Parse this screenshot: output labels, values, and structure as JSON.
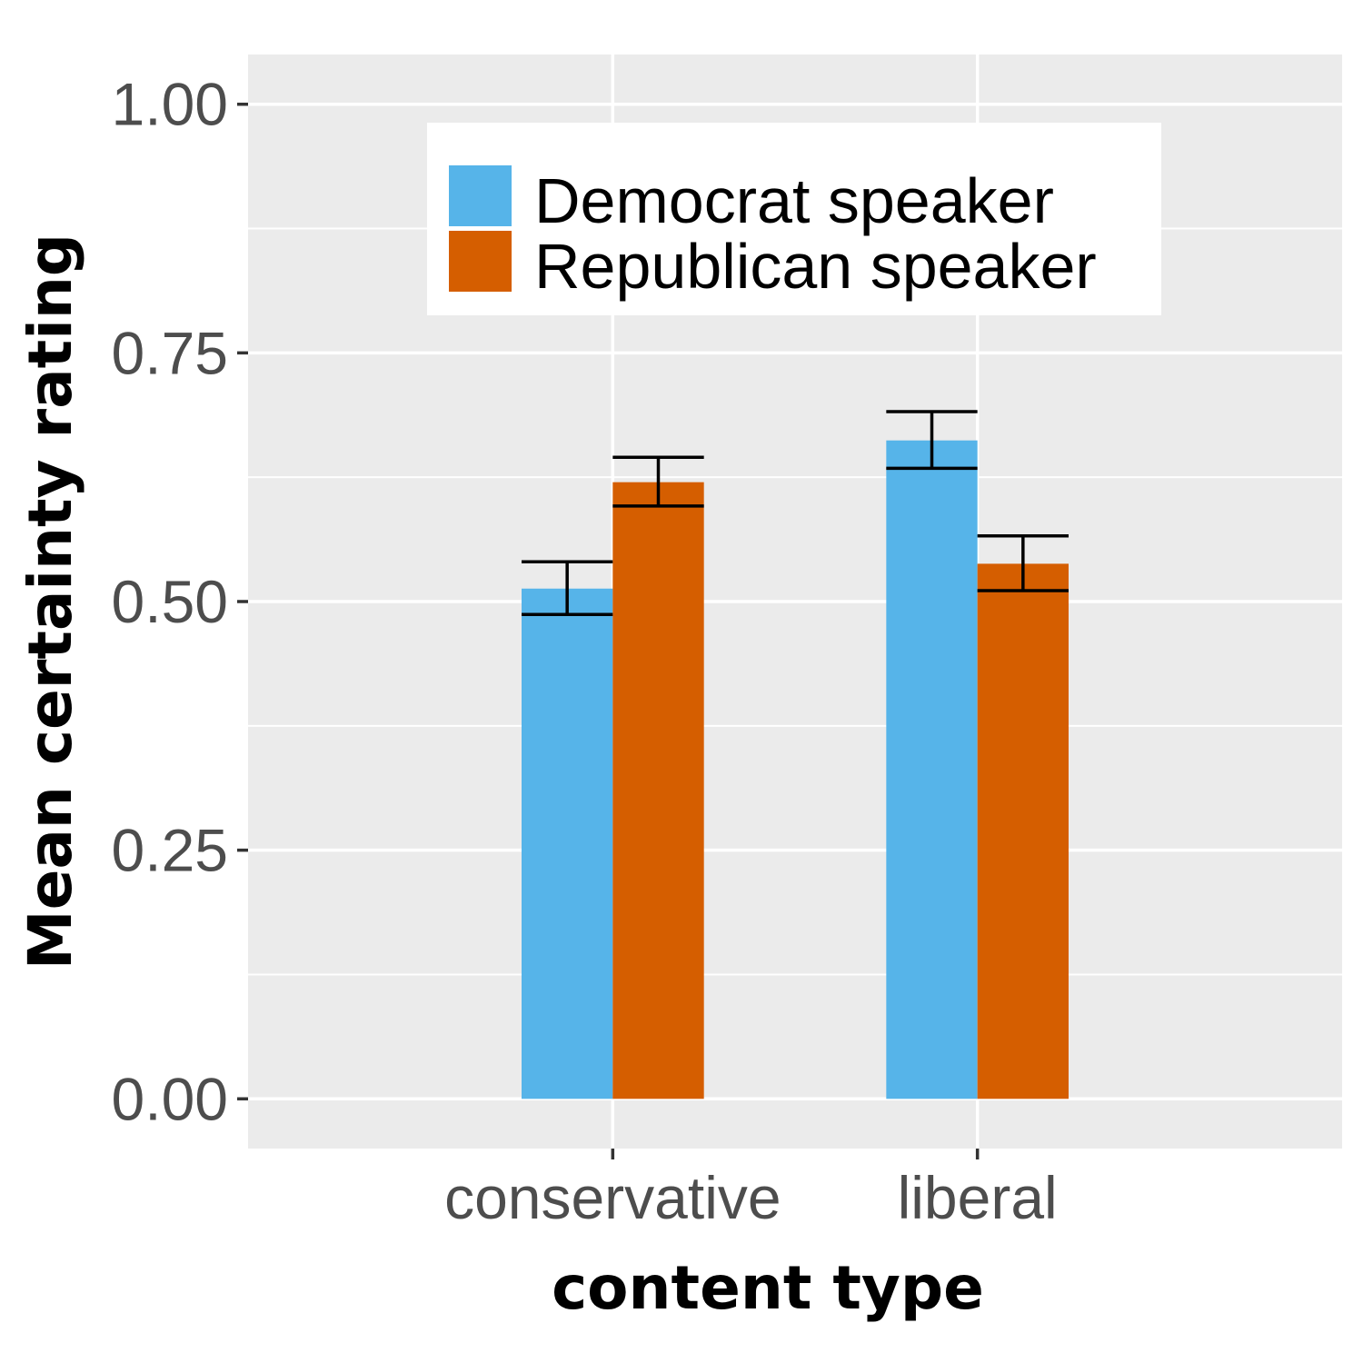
{
  "chart_data": {
    "type": "bar",
    "title": "",
    "xlabel": "content type",
    "ylabel": "Mean certainty rating",
    "categories": [
      "conservative",
      "liberal"
    ],
    "ylim": [
      -0.05,
      1.05
    ],
    "yticks": [
      "0.00",
      "0.25",
      "0.50",
      "0.75",
      "1.00"
    ],
    "ytick_values": [
      0,
      0.25,
      0.5,
      0.75,
      1.0
    ],
    "grid": true,
    "legend_position": "top-center, inside plot",
    "series": [
      {
        "name": "Democrat speaker",
        "color": "#56B4E9",
        "values": [
          0.513,
          0.662
        ],
        "error_low": [
          0.487,
          0.634
        ],
        "error_high": [
          0.54,
          0.691
        ]
      },
      {
        "name": "Republican speaker",
        "color": "#D55E00",
        "values": [
          0.62,
          0.538
        ],
        "error_low": [
          0.596,
          0.511
        ],
        "error_high": [
          0.645,
          0.566
        ]
      }
    ],
    "panel_background": "#EBEBEB",
    "gridline_color": "#FFFFFF"
  }
}
